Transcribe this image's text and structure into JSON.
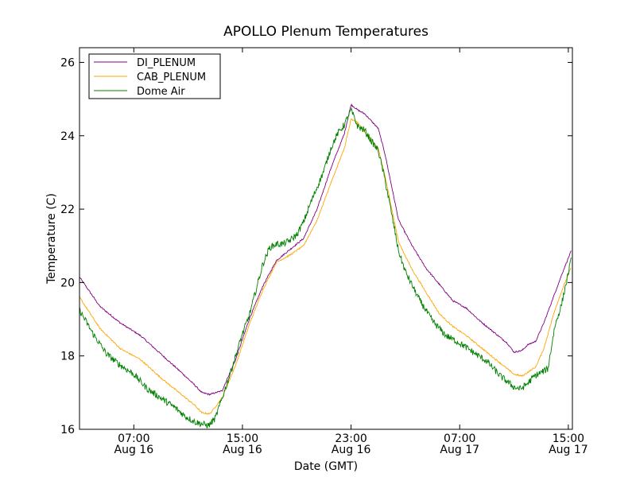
{
  "chart_data": {
    "type": "line",
    "title": "APOLLO Plenum Temperatures",
    "xlabel": "Date (GMT)",
    "ylabel": "Temperature (C)",
    "xlim_hours": [
      3.0,
      15.3
    ],
    "x_ticks": [
      {
        "x": 7,
        "time": "07:00",
        "date": "Aug 16"
      },
      {
        "x": 15,
        "time": "15:00",
        "date": "Aug 16"
      },
      {
        "x": 23,
        "time": "23:00",
        "date": "Aug 16"
      },
      {
        "x": 31,
        "time": "07:00",
        "date": "Aug 17"
      },
      {
        "x": 39,
        "time": "15:00",
        "date": "Aug 17"
      }
    ],
    "ylim": [
      16,
      26.4
    ],
    "y_ticks": [
      16,
      18,
      20,
      22,
      24,
      26
    ],
    "legend_position": "top-left",
    "series": [
      {
        "name": "DI_PLENUM",
        "color": "#800080",
        "noise": 0.02,
        "x": [
          3.0,
          4.5,
          6.0,
          7.5,
          9.0,
          10.5,
          11.5,
          12.0,
          12.6,
          13.5,
          14.5,
          15.5,
          16.5,
          17.5,
          18.5,
          19.5,
          20.5,
          21.5,
          22.5,
          23.0,
          23.5,
          24.0,
          24.5,
          25.0,
          25.5,
          26.5,
          27.5,
          28.5,
          29.5,
          30.5,
          31.5,
          32.5,
          33.5,
          34.5,
          35.0,
          35.6,
          36.0,
          36.6,
          37.2,
          38.0,
          38.6,
          39.2
        ],
        "y": [
          20.15,
          19.35,
          18.9,
          18.55,
          18.05,
          17.55,
          17.2,
          17.0,
          16.95,
          17.05,
          17.9,
          19.0,
          19.9,
          20.6,
          20.9,
          21.2,
          22.0,
          23.1,
          24.05,
          24.85,
          24.7,
          24.6,
          24.4,
          24.2,
          23.5,
          21.7,
          21.0,
          20.4,
          19.95,
          19.5,
          19.3,
          18.95,
          18.65,
          18.35,
          18.1,
          18.15,
          18.3,
          18.4,
          18.9,
          19.7,
          20.3,
          20.85
        ]
      },
      {
        "name": "CAB_PLENUM",
        "color": "#ffa500",
        "noise": 0.02,
        "x": [
          3.0,
          4.5,
          6.0,
          7.5,
          9.0,
          10.5,
          11.5,
          12.0,
          12.6,
          13.5,
          14.5,
          15.5,
          16.5,
          17.5,
          18.5,
          19.5,
          20.5,
          21.5,
          22.5,
          23.0,
          23.5,
          24.0,
          24.5,
          25.0,
          25.5,
          26.5,
          27.5,
          28.5,
          29.5,
          30.5,
          31.5,
          32.5,
          33.5,
          34.5,
          35.0,
          35.6,
          36.0,
          36.6,
          37.2,
          38.0,
          38.6,
          39.2
        ],
        "y": [
          19.6,
          18.75,
          18.2,
          17.9,
          17.4,
          16.95,
          16.65,
          16.45,
          16.42,
          16.85,
          17.75,
          18.85,
          19.8,
          20.55,
          20.75,
          21.0,
          21.7,
          22.7,
          23.65,
          24.45,
          24.35,
          24.1,
          23.9,
          23.65,
          22.9,
          21.1,
          20.35,
          19.75,
          19.15,
          18.8,
          18.55,
          18.25,
          17.95,
          17.65,
          17.5,
          17.45,
          17.55,
          17.7,
          18.2,
          19.25,
          19.85,
          20.4
        ]
      },
      {
        "name": "Dome Air",
        "color": "#008000",
        "noise": 0.09,
        "x": [
          3.0,
          4.0,
          5.0,
          6.0,
          7.0,
          8.0,
          9.0,
          10.0,
          10.8,
          11.5,
          12.0,
          12.5,
          13.0,
          14.0,
          15.0,
          15.5,
          16.0,
          16.5,
          17.0,
          17.5,
          18.0,
          18.5,
          19.0,
          19.5,
          20.0,
          21.0,
          21.5,
          22.0,
          22.5,
          23.0,
          23.5,
          24.0,
          24.5,
          25.0,
          25.5,
          26.0,
          26.5,
          27.0,
          28.0,
          29.0,
          30.0,
          31.0,
          32.0,
          33.0,
          33.5,
          34.0,
          34.5,
          35.0,
          35.5,
          36.0,
          36.5,
          37.0,
          37.5,
          38.0,
          38.5,
          39.2
        ],
        "y": [
          19.25,
          18.6,
          18.05,
          17.75,
          17.5,
          17.1,
          16.85,
          16.6,
          16.35,
          16.2,
          16.15,
          16.1,
          16.3,
          17.4,
          18.6,
          19.1,
          19.8,
          20.5,
          20.95,
          21.05,
          21.05,
          21.15,
          21.3,
          21.65,
          22.15,
          23.05,
          23.65,
          24.05,
          24.3,
          24.7,
          24.25,
          24.15,
          23.85,
          23.6,
          22.8,
          21.85,
          20.85,
          20.3,
          19.55,
          18.95,
          18.55,
          18.35,
          18.1,
          17.85,
          17.65,
          17.45,
          17.3,
          17.15,
          17.1,
          17.25,
          17.45,
          17.55,
          17.65,
          18.8,
          19.4,
          20.6
        ]
      }
    ]
  }
}
